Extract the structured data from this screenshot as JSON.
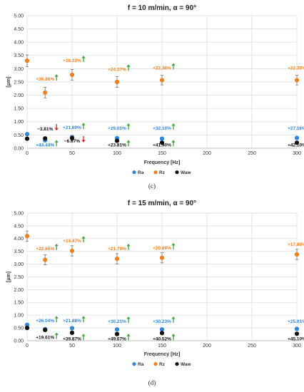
{
  "colors": {
    "Ra": "#2e86de",
    "Rz": "#f07f1e",
    "Waw": "#111111",
    "arrow_up": "#3aaa35",
    "arrow_down": "#e41a1c",
    "grid": "#d9d9d9"
  },
  "chart_data": [
    {
      "type": "scatter",
      "title": "f = 10 m/min, α = 90°",
      "xlabel": "Frequency [Hz]",
      "ylabel": "[μm]",
      "caption": "(c)",
      "xlim": [
        0,
        300
      ],
      "ylim": [
        0,
        5
      ],
      "xticks": [
        0,
        50,
        100,
        150,
        200,
        250,
        300
      ],
      "yticks": [
        0,
        0.5,
        1.0,
        1.5,
        2.0,
        2.5,
        3.0,
        3.5,
        4.0,
        4.5,
        5.0
      ],
      "ytick_labels": [
        "0.00",
        "0.50",
        "1.00",
        "1.50",
        "2.00",
        "2.50",
        "3.00",
        "3.50",
        "4.00",
        "4.50",
        "5.00"
      ],
      "grid": true,
      "legend_position": "bottom-left",
      "legend": [
        "Ra",
        "Rz",
        "Waw"
      ],
      "series": [
        {
          "name": "Ra",
          "x": [
            0,
            20,
            50,
            100,
            150,
            300
          ],
          "y": [
            0.53,
            0.3,
            0.42,
            0.38,
            0.36,
            0.39
          ],
          "err": [
            0.05,
            0.05,
            0.06,
            0.05,
            0.05,
            0.05
          ]
        },
        {
          "name": "Rz",
          "x": [
            0,
            20,
            50,
            100,
            150,
            300
          ],
          "y": [
            3.3,
            2.1,
            2.77,
            2.5,
            2.57,
            2.57
          ],
          "err": [
            0.22,
            0.2,
            0.2,
            0.2,
            0.18,
            0.18
          ]
        },
        {
          "name": "Waw",
          "x": [
            0,
            20,
            50,
            100,
            150,
            300
          ],
          "y": [
            0.36,
            0.37,
            0.38,
            0.28,
            0.21,
            0.21
          ],
          "err": [
            0.05,
            0.05,
            0.08,
            0.05,
            0.05,
            0.05
          ]
        }
      ],
      "annotations": [
        {
          "text": "+36.86%",
          "x": 20,
          "y": 2.55,
          "series": "Rz",
          "arrow": "up"
        },
        {
          "text": "+16.31%",
          "x": 50,
          "y": 3.25,
          "series": "Rz",
          "arrow": "up"
        },
        {
          "text": "+24.37%",
          "x": 100,
          "y": 2.92,
          "series": "Rz",
          "arrow": "up"
        },
        {
          "text": "+22.36%",
          "x": 150,
          "y": 2.97,
          "series": "Rz",
          "arrow": "up"
        },
        {
          "text": "+22.36%",
          "x": 300,
          "y": 2.97,
          "series": "Rz",
          "arrow": "up"
        },
        {
          "text": "−3.81%",
          "x": 20,
          "y": 0.67,
          "series": "Waw",
          "arrow": "down"
        },
        {
          "text": "+21.60%",
          "x": 50,
          "y": 0.72,
          "series": "Ra",
          "arrow": "up"
        },
        {
          "text": "+29.01%",
          "x": 100,
          "y": 0.7,
          "series": "Ra",
          "arrow": "up"
        },
        {
          "text": "+32.10%",
          "x": 150,
          "y": 0.7,
          "series": "Ra",
          "arrow": "up"
        },
        {
          "text": "+27.16%",
          "x": 300,
          "y": 0.7,
          "series": "Ra",
          "arrow": "up"
        },
        {
          "text": "+44.44%",
          "x": 20,
          "y": 0.07,
          "series": "Ra",
          "arrow": "up"
        },
        {
          "text": "−6.67%",
          "x": 50,
          "y": 0.22,
          "series": "Waw",
          "arrow": "down"
        },
        {
          "text": "+23.81%",
          "x": 100,
          "y": 0.07,
          "series": "Waw",
          "arrow": "up"
        },
        {
          "text": "+41.90%",
          "x": 150,
          "y": 0.07,
          "series": "Waw",
          "arrow": "up"
        },
        {
          "text": "+42.10%",
          "x": 300,
          "y": 0.07,
          "series": "Waw",
          "arrow": "up"
        }
      ]
    },
    {
      "type": "scatter",
      "title": "f = 15 m/min, α = 90°",
      "xlabel": "Frequency [Hz]",
      "ylabel": "[μm]",
      "caption": "(d)",
      "xlim": [
        0,
        300
      ],
      "ylim": [
        0,
        5
      ],
      "xticks": [
        0,
        50,
        100,
        150,
        200,
        250,
        300
      ],
      "yticks": [
        0,
        0.5,
        1.0,
        1.5,
        2.0,
        2.5,
        3.0,
        3.5,
        4.0,
        4.5,
        5.0
      ],
      "ytick_labels": [
        "0.00",
        "0.50",
        "1.00",
        "1.50",
        "2.00",
        "2.50",
        "3.00",
        "3.50",
        "4.00",
        "4.50",
        "5.00"
      ],
      "grid": true,
      "legend_position": "bottom-left",
      "legend": [
        "Ra",
        "Rz",
        "Waw"
      ],
      "series": [
        {
          "name": "Ra",
          "x": [
            0,
            20,
            50,
            100,
            150,
            300
          ],
          "y": [
            0.62,
            0.45,
            0.49,
            0.44,
            0.44,
            0.46
          ],
          "err": [
            0.06,
            0.05,
            0.06,
            0.05,
            0.05,
            0.05
          ]
        },
        {
          "name": "Rz",
          "x": [
            0,
            20,
            50,
            100,
            150,
            300
          ],
          "y": [
            4.1,
            3.17,
            3.52,
            3.21,
            3.25,
            3.38
          ],
          "err": [
            0.2,
            0.2,
            0.2,
            0.2,
            0.2,
            0.2
          ]
        },
        {
          "name": "Waw",
          "x": [
            0,
            20,
            50,
            100,
            150,
            300
          ],
          "y": [
            0.5,
            0.42,
            0.31,
            0.26,
            0.3,
            0.27
          ],
          "err": [
            0.07,
            0.05,
            0.06,
            0.06,
            0.06,
            0.05
          ]
        }
      ],
      "annotations": [
        {
          "text": "+22.65%",
          "x": 20,
          "y": 3.55,
          "series": "Rz",
          "arrow": "up"
        },
        {
          "text": "+14.47%",
          "x": 50,
          "y": 3.85,
          "series": "Rz",
          "arrow": "up"
        },
        {
          "text": "+21.79%",
          "x": 100,
          "y": 3.55,
          "series": "Rz",
          "arrow": "up"
        },
        {
          "text": "+20.89%",
          "x": 150,
          "y": 3.58,
          "series": "Rz",
          "arrow": "up"
        },
        {
          "text": "+17.80%",
          "x": 300,
          "y": 3.72,
          "series": "Rz",
          "arrow": "up"
        },
        {
          "text": "+26.04%",
          "x": 20,
          "y": 0.72,
          "series": "Ra",
          "arrow": "up"
        },
        {
          "text": "+21.88%",
          "x": 50,
          "y": 0.72,
          "series": "Ra",
          "arrow": "up"
        },
        {
          "text": "+30.21%",
          "x": 100,
          "y": 0.7,
          "series": "Ra",
          "arrow": "up"
        },
        {
          "text": "+30.23%",
          "x": 150,
          "y": 0.7,
          "series": "Ra",
          "arrow": "up"
        },
        {
          "text": "+25.01%",
          "x": 300,
          "y": 0.7,
          "series": "Ra",
          "arrow": "up"
        },
        {
          "text": "+19.61%",
          "x": 20,
          "y": 0.07,
          "series": "Waw",
          "arrow": "up"
        },
        {
          "text": "+39.87%",
          "x": 50,
          "y": 0.02,
          "series": "Waw",
          "arrow": "up"
        },
        {
          "text": "+49.67%",
          "x": 100,
          "y": 0.02,
          "series": "Waw",
          "arrow": "up"
        },
        {
          "text": "+40.52%",
          "x": 150,
          "y": 0.02,
          "series": "Waw",
          "arrow": "up"
        },
        {
          "text": "+45.10%",
          "x": 300,
          "y": 0.02,
          "series": "Waw",
          "arrow": "up"
        }
      ]
    }
  ]
}
